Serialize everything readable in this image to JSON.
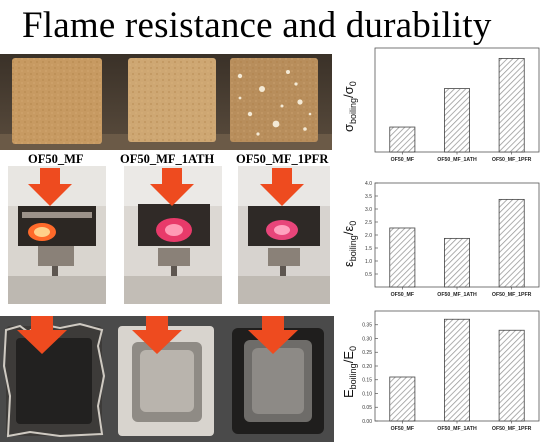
{
  "header": {
    "title": "Flame resistance  and  durability"
  },
  "samples": [
    {
      "label": "OF50_MF"
    },
    {
      "label": "OF50_MF_1ATH"
    },
    {
      "label": "OF50_MF_1PFR"
    }
  ],
  "colors": {
    "foam_mf": "#c79a62",
    "foam_ath": "#cea773",
    "foam_pfr": "#b88e5c",
    "arrow": "#ee4b1f",
    "bar_hatch": "#9a9a9a",
    "axis": "#555555"
  },
  "chart_data": [
    {
      "type": "bar",
      "categories": [
        "OF50_MF",
        "OF50_MF_1ATH",
        "OF50_MF_1PFR"
      ],
      "values": [
        0.24,
        0.61,
        0.9
      ],
      "ylim": [
        0,
        1.0
      ],
      "yticks": [],
      "ylabel_main": "σ",
      "ylabel_sub": "boiling",
      "ylabel_sep": "/σ",
      "ylabel_sub2": "0"
    },
    {
      "type": "bar",
      "categories": [
        "OF50_MF",
        "OF50_MF_1ATH",
        "OF50_MF_1PFR"
      ],
      "values": [
        2.27,
        1.87,
        3.37
      ],
      "ylim": [
        0,
        4.0
      ],
      "yticks": [
        "0.5",
        "1.0",
        "1.5",
        "2.0",
        "2.5",
        "3.0",
        "3.5",
        "4.0"
      ],
      "ylabel_main": "ε",
      "ylabel_sub": "boiling",
      "ylabel_sep": "/ε",
      "ylabel_sub2": "0"
    },
    {
      "type": "bar",
      "categories": [
        "OF50_MF",
        "OF50_MF_1ATH",
        "OF50_MF_1PFR"
      ],
      "values": [
        0.16,
        0.37,
        0.33
      ],
      "ylim": [
        0,
        0.4
      ],
      "yticks": [
        "0.00",
        "0.05",
        "0.10",
        "0.15",
        "0.20",
        "0.25",
        "0.30",
        "0.35"
      ],
      "ylabel_main": "E",
      "ylabel_sub": "boiling",
      "ylabel_sep": "/E",
      "ylabel_sub2": "0"
    }
  ]
}
